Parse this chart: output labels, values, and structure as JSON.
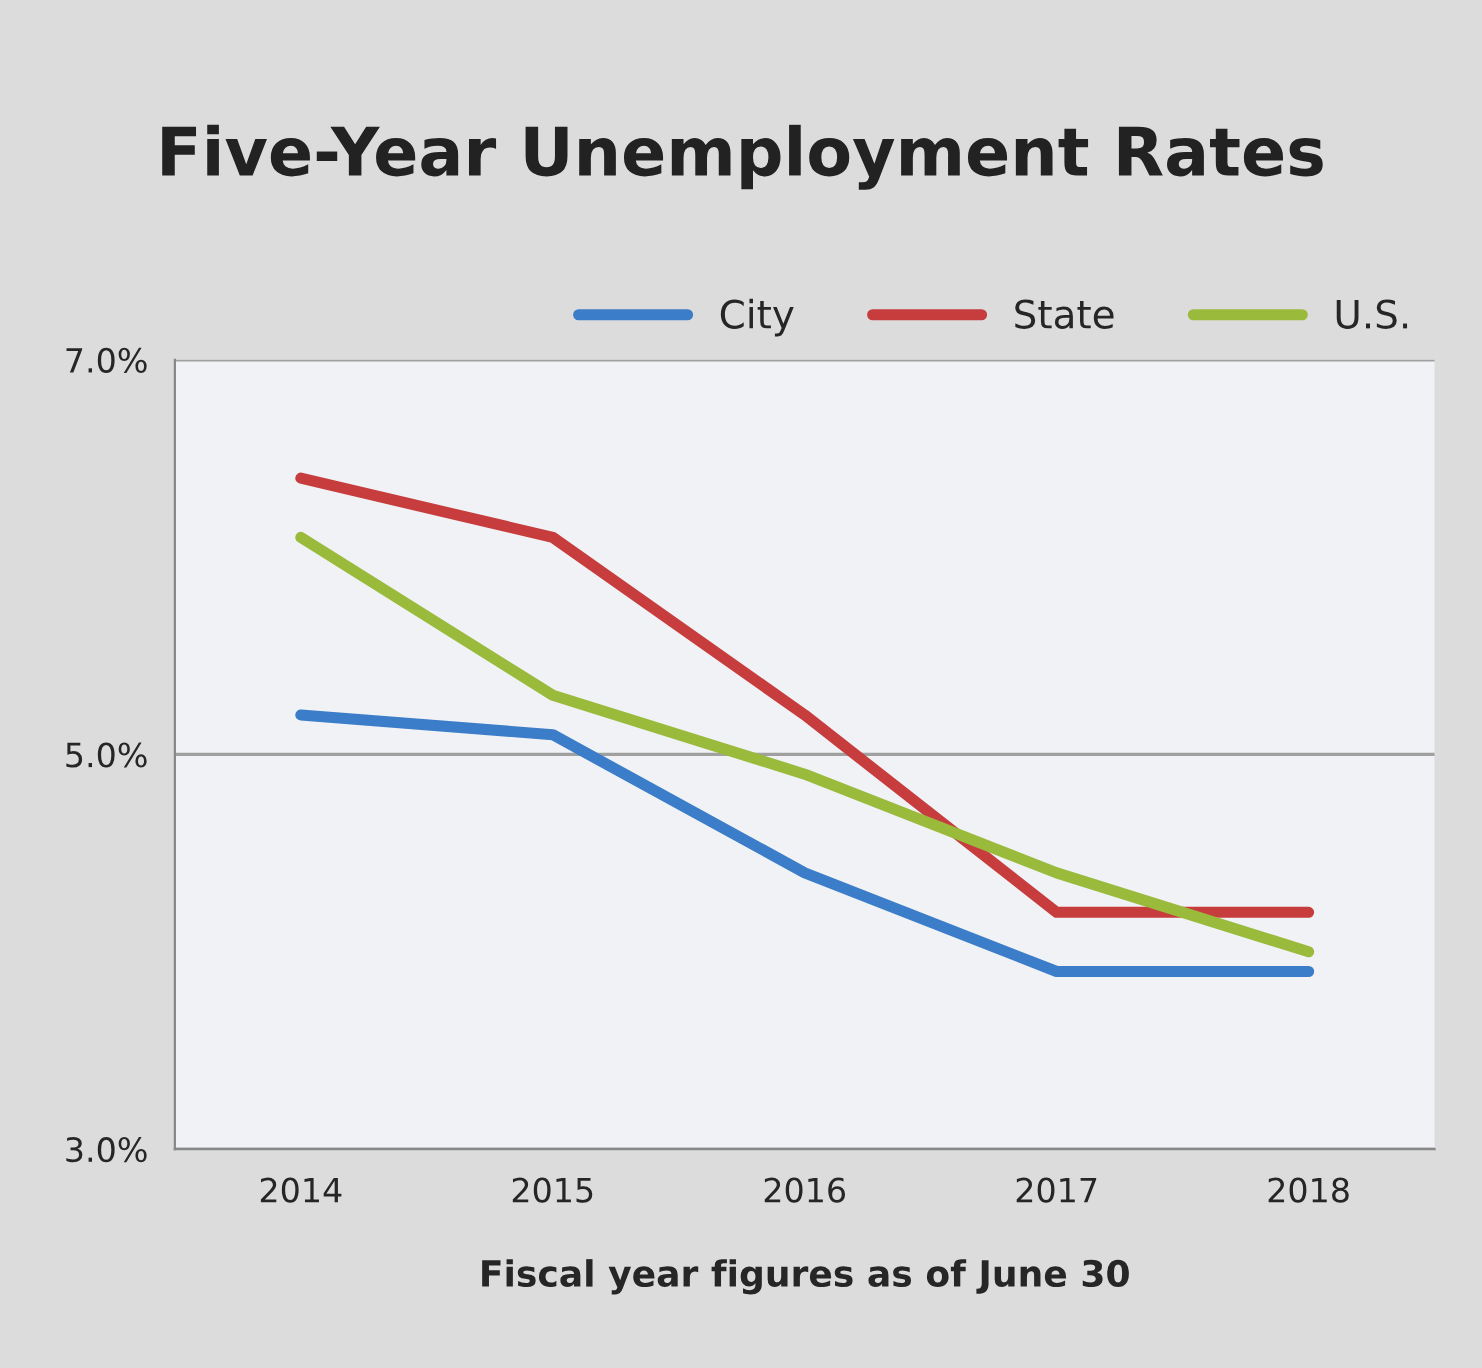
{
  "chart_data": {
    "type": "line",
    "title": "Five-Year Unemployment Rates",
    "xlabel": "Fiscal year figures as of June 30",
    "categories": [
      "2014",
      "2015",
      "2016",
      "2017",
      "2018"
    ],
    "series": [
      {
        "name": "City",
        "color": "#3b7dc8",
        "values": [
          5.2,
          5.1,
          4.4,
          3.9,
          3.9
        ]
      },
      {
        "name": "State",
        "color": "#c73c3c",
        "values": [
          6.4,
          6.1,
          5.2,
          4.2,
          4.2
        ]
      },
      {
        "name": "U.S.",
        "color": "#9aba3c",
        "values": [
          6.1,
          5.3,
          4.9,
          4.4,
          4.0
        ]
      }
    ],
    "ylim": [
      3,
      7
    ],
    "yticks": [
      {
        "value": 3,
        "label": "3.0%"
      },
      {
        "value": 5,
        "label": "5.0%"
      },
      {
        "value": 7,
        "label": "7.0%"
      }
    ],
    "grid": "y",
    "legend": "top right",
    "marker": "none",
    "line_style": "solid"
  }
}
